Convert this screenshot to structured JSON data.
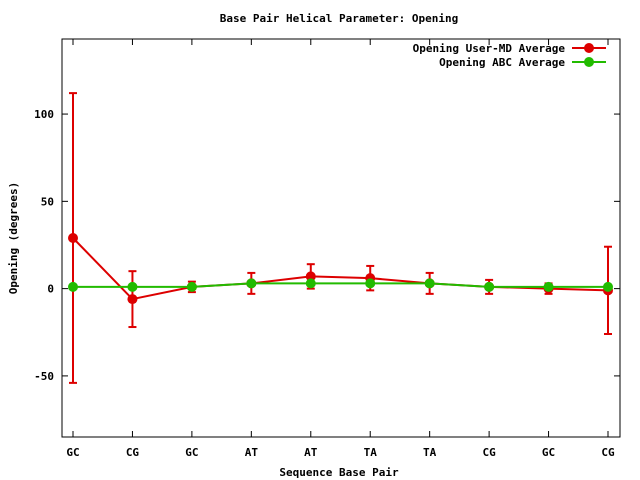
{
  "chart_data": {
    "type": "line",
    "title": "Base Pair Helical Parameter: Opening",
    "xlabel": "Sequence Base Pair",
    "ylabel": "Opening (degrees)",
    "categories": [
      "GC",
      "CG",
      "GC",
      "AT",
      "AT",
      "TA",
      "TA",
      "CG",
      "GC",
      "CG"
    ],
    "ylim": [
      -85,
      143
    ],
    "yticks": [
      -50,
      0,
      50,
      100
    ],
    "grid": false,
    "legend_position": "top-right",
    "series": [
      {
        "name": "Opening User-MD Average",
        "color": "#dd0000",
        "values": [
          29,
          -6,
          1,
          3,
          7,
          6,
          3,
          1,
          0,
          -1
        ],
        "error": [
          83,
          16,
          3,
          6,
          7,
          7,
          6,
          4,
          3,
          25
        ]
      },
      {
        "name": "Opening ABC Average",
        "color": "#22bb00",
        "values": [
          1,
          1,
          1,
          3,
          3,
          3,
          3,
          1,
          1,
          1
        ]
      }
    ]
  }
}
